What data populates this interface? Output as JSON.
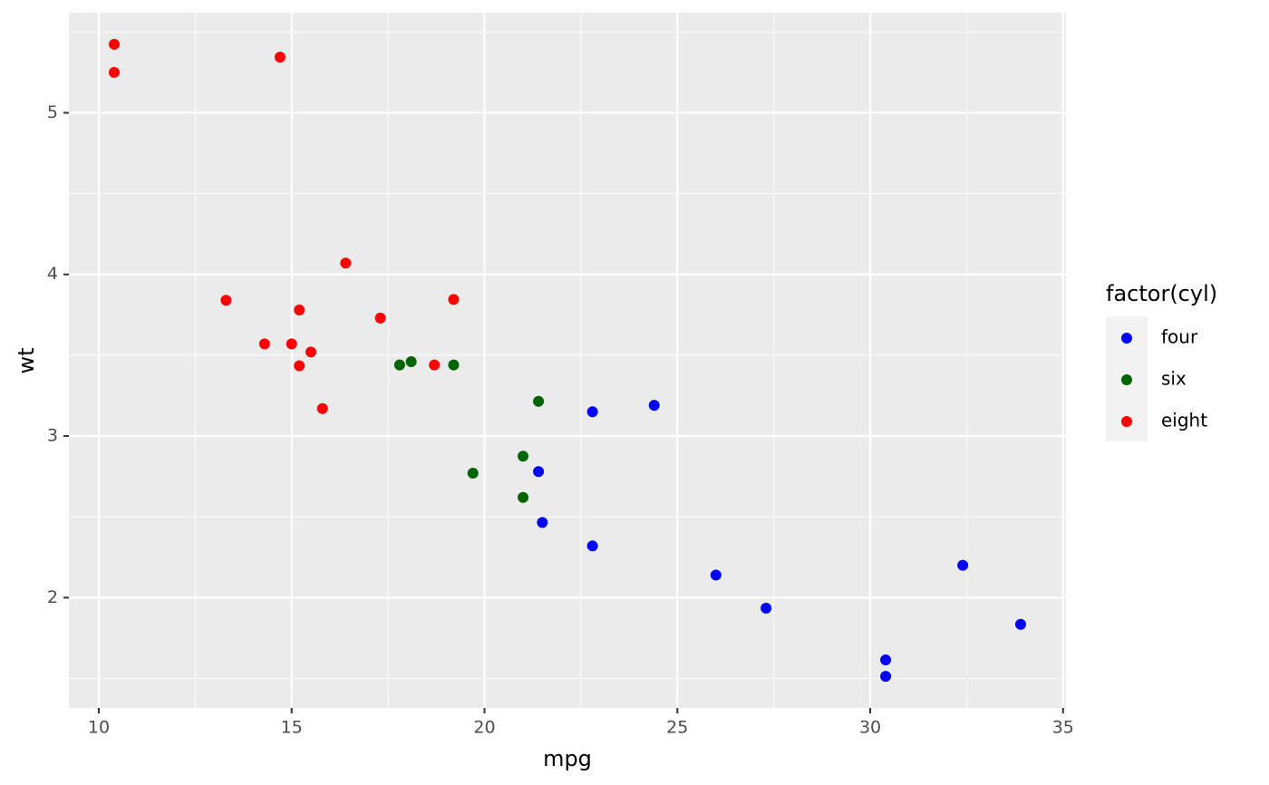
{
  "chart_data": {
    "type": "scatter",
    "x_label": "mpg",
    "y_label": "wt",
    "legend_title": "factor(cyl)",
    "legend_position": "right",
    "xlim": [
      9.225,
      35.075
    ],
    "ylim": [
      1.31745,
      5.61955
    ],
    "xticks": [
      10,
      15,
      20,
      25,
      30,
      35
    ],
    "yticks": [
      2,
      3,
      4,
      5
    ],
    "x_minor_breaks": [
      12.5,
      17.5,
      22.5,
      27.5,
      32.5
    ],
    "y_minor_breaks": [
      1.5,
      2.5,
      3.5,
      4.5,
      5.5
    ],
    "grid": true,
    "series": [
      {
        "name": "four",
        "color": "#0000FF",
        "x": [
          22.8,
          24.4,
          22.8,
          32.4,
          30.4,
          33.9,
          21.5,
          27.3,
          26.0,
          30.4,
          21.4
        ],
        "values": [
          2.32,
          3.19,
          3.15,
          2.2,
          1.615,
          1.835,
          2.465,
          1.935,
          2.14,
          1.513,
          2.78
        ]
      },
      {
        "name": "six",
        "color": "#006400",
        "x": [
          21.0,
          21.0,
          21.4,
          18.1,
          19.2,
          17.8,
          19.7
        ],
        "values": [
          2.62,
          2.875,
          3.215,
          3.46,
          3.44,
          3.44,
          2.77
        ]
      },
      {
        "name": "eight",
        "color": "#FF0000",
        "x": [
          18.7,
          14.3,
          16.4,
          17.3,
          15.2,
          10.4,
          10.4,
          14.7,
          15.5,
          15.2,
          13.3,
          19.2,
          15.8,
          15.0
        ],
        "values": [
          3.44,
          3.57,
          4.07,
          3.73,
          3.78,
          5.25,
          5.424,
          5.345,
          3.52,
          3.435,
          3.84,
          3.845,
          3.17,
          3.57
        ]
      }
    ]
  }
}
